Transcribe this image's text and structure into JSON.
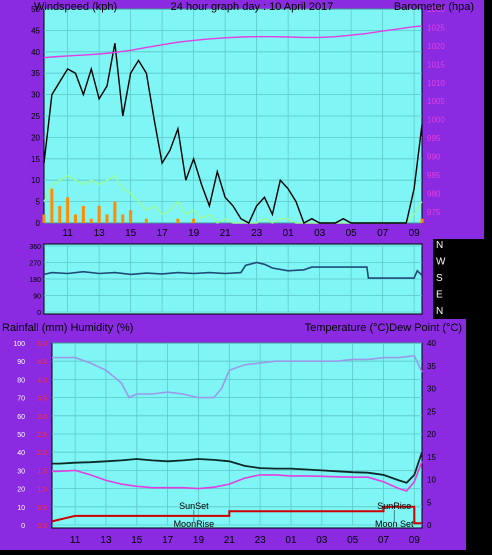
{
  "colors": {
    "frame": "#8A2BE2",
    "plot_bg": "#7FF5F5",
    "grid": "#5FC8C8",
    "gust": "#000000",
    "wind": "#98FB98",
    "rain_hour": "#FF8C00",
    "barometer": "#E040E0",
    "direction": "#1E4A78",
    "humidity": "#9A9AE8",
    "temperature": "#0A2A28",
    "dew_point": "#E040E0",
    "rainfall": "#CC0000",
    "text_dark": "#000000",
    "text_light": "#FFFFFF",
    "red_axis": "#FF3030"
  },
  "chart_data": [
    {
      "id": "wind_baro",
      "type": "line",
      "title": "24 hour graph day : 10 April 2017",
      "ylabel_left": "Windspeed (kph)",
      "ylabel_right": "Barometer (hpa)",
      "x_ticks": [
        "11",
        "13",
        "15",
        "17",
        "19",
        "21",
        "23",
        "01",
        "03",
        "05",
        "07",
        "09"
      ],
      "x_range_hours": [
        9.5,
        33.5
      ],
      "y_left_range": [
        0,
        50
      ],
      "y_left_ticks": [
        0,
        5,
        10,
        15,
        20,
        25,
        30,
        35,
        40,
        45,
        50
      ],
      "y_right_range": [
        972,
        1030
      ],
      "y_right_ticks": [
        975,
        980,
        985,
        990,
        995,
        1000,
        1005,
        1010,
        1015,
        1020,
        1025,
        1030
      ],
      "grid": true,
      "series": [
        {
          "key": "barometer",
          "axis": "right",
          "x": [
            9.5,
            10,
            11,
            12,
            13,
            14,
            15,
            16,
            17,
            18,
            19,
            20,
            21,
            22,
            23,
            24,
            25,
            26,
            27,
            28,
            29,
            30,
            31,
            32,
            33,
            33.5
          ],
          "y": [
            1016.8,
            1017,
            1017.3,
            1017.5,
            1017.8,
            1018.2,
            1018.8,
            1019.6,
            1020.3,
            1021,
            1021.5,
            1021.9,
            1022.2,
            1022.4,
            1022.5,
            1022.5,
            1022.4,
            1022.3,
            1022.3,
            1022.5,
            1022.9,
            1023.4,
            1024,
            1024.6,
            1025.2,
            1025.4
          ]
        },
        {
          "key": "gust",
          "axis": "left",
          "x": [
            9.5,
            10,
            10.5,
            11,
            11.5,
            12,
            12.5,
            13,
            13.5,
            14,
            14.5,
            15,
            15.5,
            16,
            16.5,
            17,
            17.5,
            18,
            18.5,
            19,
            19.5,
            20,
            20.5,
            21,
            21.5,
            22,
            22.5,
            23,
            23.5,
            24,
            24.5,
            25,
            25.5,
            26,
            26.5,
            27,
            27.5,
            28,
            28.5,
            29,
            29.5,
            30,
            30.5,
            31,
            31.5,
            32,
            32.5,
            33,
            33.5
          ],
          "y": [
            14,
            30,
            33,
            36,
            35,
            30,
            36,
            29,
            32,
            42,
            25,
            35,
            38,
            35,
            24,
            14,
            17,
            22,
            10,
            15,
            9,
            4,
            12,
            6,
            4,
            1,
            0,
            4,
            6,
            2,
            10,
            8,
            5,
            0,
            1,
            0,
            0,
            0,
            1,
            0,
            0,
            0,
            0,
            0,
            0,
            0,
            0,
            8,
            23
          ]
        },
        {
          "key": "wind",
          "axis": "left",
          "x": [
            9.5,
            10,
            10.5,
            11,
            11.5,
            12,
            12.5,
            13,
            13.5,
            14,
            14.5,
            15,
            15.5,
            16,
            16.5,
            17,
            17.5,
            18,
            18.5,
            19,
            19.5,
            20,
            20.5,
            21,
            21.5,
            22,
            22.5,
            23,
            23.5,
            24,
            24.5,
            25,
            25.5,
            26,
            26.5,
            27,
            27.5,
            28,
            28.5,
            29,
            29.5,
            30,
            30.5,
            31,
            31.5,
            32,
            32.5,
            33,
            33.5
          ],
          "y": [
            5,
            9,
            10,
            11,
            10,
            9,
            10,
            9,
            10,
            11,
            8,
            7,
            5,
            3,
            4,
            2,
            3,
            5,
            2,
            3,
            1,
            2,
            0,
            1,
            0,
            0,
            0,
            0,
            1,
            0,
            1,
            1,
            0,
            0,
            0,
            0,
            0,
            0,
            0,
            0,
            0,
            0,
            0,
            0,
            0,
            0,
            0,
            2,
            5
          ]
        },
        {
          "key": "rain_hour",
          "axis": "left",
          "x": [
            9.5,
            10,
            10.5,
            11,
            11.5,
            12,
            12.5,
            13,
            13.5,
            14,
            14.5,
            15,
            15.5,
            16,
            16.5,
            17,
            17.5,
            18,
            18.5,
            19,
            19.5,
            20,
            20.5,
            21,
            21.5,
            22,
            22.5,
            23,
            23.5,
            24,
            24.5,
            25,
            25.5,
            26,
            26.5,
            27,
            27.5,
            28,
            28.5,
            29,
            29.5,
            30,
            30.5,
            31,
            31.5,
            32,
            32.5,
            33,
            33.5
          ],
          "y": [
            2,
            8,
            4,
            6,
            2,
            4,
            1,
            4,
            2,
            5,
            2,
            3,
            0,
            1,
            0,
            0,
            0,
            1,
            0,
            1,
            0,
            0,
            0,
            0,
            0,
            0,
            0,
            0,
            0,
            0,
            0,
            0,
            0,
            0,
            0,
            0,
            0,
            0,
            0,
            0,
            0,
            0,
            0,
            0,
            0,
            0,
            0,
            0,
            1
          ]
        }
      ]
    },
    {
      "id": "direction",
      "type": "line",
      "y_range": [
        0,
        360
      ],
      "y_ticks": [
        0,
        90,
        180,
        270,
        360
      ],
      "y_tick_labels": [
        "0",
        "90",
        "180",
        "270",
        "360"
      ],
      "right_labels": [
        "N",
        "W",
        "S",
        "E",
        "N"
      ],
      "series": [
        {
          "key": "direction",
          "x": [
            9.5,
            10,
            11,
            12,
            13,
            14,
            15,
            16,
            17,
            18,
            19,
            20,
            21,
            22,
            22.3,
            23,
            23.5,
            24,
            25,
            26,
            26.5,
            27,
            28,
            29,
            30,
            30.1,
            31,
            32,
            33,
            33.2,
            33.5
          ],
          "y": [
            205,
            215,
            210,
            220,
            210,
            215,
            205,
            212,
            208,
            215,
            210,
            215,
            210,
            215,
            255,
            270,
            260,
            240,
            225,
            230,
            245,
            245,
            245,
            245,
            245,
            185,
            185,
            185,
            185,
            225,
            200
          ]
        }
      ]
    },
    {
      "id": "rain_temp",
      "type": "line",
      "ylabel_left": "Rainfall (mm)  Humidity (%)",
      "ylabel_right": "Temperature (°C)Dew Point (°C)",
      "x_ticks": [
        "11",
        "13",
        "15",
        "17",
        "19",
        "21",
        "23",
        "01",
        "03",
        "05",
        "07",
        "09"
      ],
      "humidity_axis": [
        0,
        100
      ],
      "humidity_ticks": [
        0,
        10,
        20,
        30,
        40,
        50,
        60,
        70,
        80,
        90,
        100
      ],
      "rain_axis": [
        0,
        5
      ],
      "rain_ticks": [
        "0.0",
        "0.5",
        "1.0",
        "1.5",
        "2.0",
        "2.5",
        "3.0",
        "3.5",
        "4.0",
        "4.5",
        "5.0"
      ],
      "temp_axis": [
        0,
        40
      ],
      "temp_ticks": [
        0,
        5,
        10,
        15,
        20,
        25,
        30,
        35,
        40
      ],
      "grid": true,
      "annotations": [
        {
          "text": "SunSet",
          "x": 18.7
        },
        {
          "text": "MoonRise",
          "x": 18.7
        },
        {
          "text": "SunRise",
          "x": 31.7
        },
        {
          "text": "Moon Set",
          "x": 31.7
        }
      ],
      "series": [
        {
          "key": "humidity",
          "axis": "humidity",
          "x": [
            9.5,
            10,
            11,
            12,
            13,
            14,
            14.5,
            15,
            16,
            17,
            18,
            19,
            20,
            20.5,
            21,
            22,
            23,
            24,
            25,
            26,
            27,
            28,
            29,
            30,
            31,
            32,
            33,
            33.5
          ],
          "y": [
            92,
            92,
            92,
            89,
            85,
            78,
            70,
            72,
            72,
            73,
            72,
            70,
            70,
            75,
            85,
            88,
            89,
            90,
            90,
            90,
            90,
            90,
            91,
            91,
            92,
            92,
            93,
            84
          ]
        },
        {
          "key": "temperature",
          "axis": "temp",
          "x": [
            9.5,
            10,
            11,
            12,
            13,
            14,
            15,
            16,
            17,
            18,
            19,
            20,
            21,
            22,
            23,
            24,
            25,
            26,
            27,
            28,
            29,
            30,
            31,
            32,
            32.5,
            33,
            33.5
          ],
          "y": [
            13.5,
            13.5,
            13.7,
            13.8,
            14,
            14.2,
            14.5,
            14.2,
            14,
            14.2,
            14.5,
            14.3,
            14,
            13,
            12.5,
            12.4,
            12.4,
            12.2,
            12,
            11.8,
            11.6,
            11.5,
            11,
            9.8,
            9.3,
            11,
            16
          ]
        },
        {
          "key": "dew_point",
          "axis": "temp",
          "x": [
            9.5,
            10,
            11,
            12,
            13,
            14,
            15,
            16,
            17,
            18,
            19,
            20,
            21,
            22,
            23,
            24,
            25,
            26,
            27,
            28,
            29,
            30,
            31,
            32,
            32.5,
            33,
            33.5
          ],
          "y": [
            11.8,
            11.8,
            12,
            11,
            9.8,
            9,
            8.5,
            8.2,
            8.2,
            8.2,
            8,
            8.3,
            9,
            10.3,
            11,
            11,
            10.8,
            10.8,
            10.7,
            10.6,
            10.5,
            10.5,
            9.5,
            8,
            7.5,
            9.5,
            14
          ]
        },
        {
          "key": "rainfall",
          "axis": "rain",
          "x": [
            9.5,
            10,
            10.5,
            11,
            12,
            13,
            14,
            15,
            16,
            17,
            18,
            19,
            20,
            21,
            21,
            22,
            23,
            24,
            25,
            26,
            27,
            28,
            29,
            30,
            31,
            31,
            32,
            33,
            33,
            33.5
          ],
          "y": [
            0.1,
            0.15,
            0.2,
            0.25,
            0.25,
            0.25,
            0.25,
            0.25,
            0.25,
            0.25,
            0.25,
            0.25,
            0.25,
            0.25,
            0.38,
            0.38,
            0.38,
            0.38,
            0.38,
            0.38,
            0.38,
            0.38,
            0.38,
            0.38,
            0.38,
            0.5,
            0.5,
            0.5,
            0.05,
            0.05
          ]
        }
      ]
    }
  ]
}
